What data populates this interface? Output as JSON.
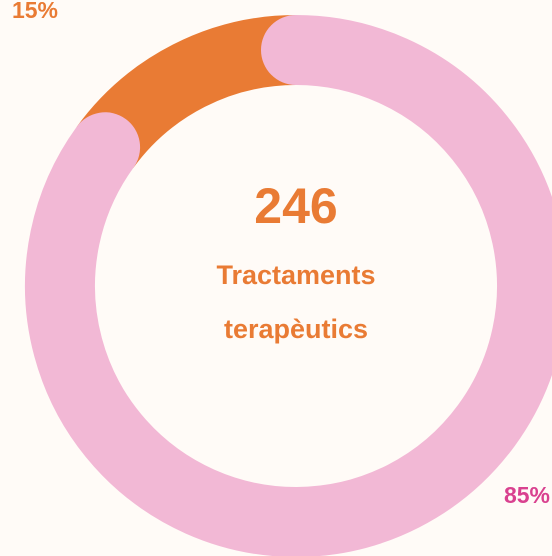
{
  "chart_data": {
    "type": "donut",
    "values": [
      15,
      85
    ],
    "value_labels": [
      "15%",
      "85%"
    ],
    "colors": [
      "#e97b34",
      "#f2b8d5"
    ],
    "label_colors": [
      "#e97b34",
      "#d9418f"
    ],
    "center_value": "246",
    "center_label": "Tractaments terapèutics"
  }
}
